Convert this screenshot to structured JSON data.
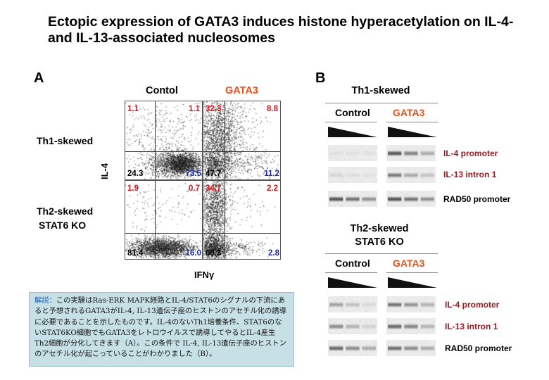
{
  "title": "Ectopic expression of GATA3 induces histone hyperacetylation on IL-4- and IL-13-associated nucleosomes",
  "panel_a": {
    "letter": "A",
    "col_control": "Contol",
    "col_gata3": "GATA3",
    "row_th1": "Th1-skewed",
    "row_th2_line1": "Th2-skewed",
    "row_th2_line2": "STAT6 KO",
    "y_axis": "IL-4",
    "x_axis": "IFNγ",
    "plots": {
      "th1_control": {
        "ul": "1.1",
        "ur": "1.1",
        "ll": "24.3",
        "lr": "73.5"
      },
      "th1_gata3": {
        "ul": "32.3",
        "ur": "8.8",
        "ll": "47.7",
        "lr": "11.2"
      },
      "th2_control": {
        "ul": "1.9",
        "ur": "0.7",
        "ll": "81.4",
        "lr": "16.0"
      },
      "th2_gata3": {
        "ul": "34.7",
        "ur": "2.2",
        "ll": "60.3",
        "lr": "2.8"
      }
    }
  },
  "note": {
    "head": "解説：",
    "body": "この実験はRas-ERK MAPK経路とIL-4/STAT6のシグナルの下流にあると予想されるGATA3がIL-4, IL-13遺伝子座のヒストンのアセチル化の誘導に必要であることを示したものです。IL-4のないTh1培養条件、STAT6のないSTAT6KO細胞でもGATA3をレトロウイルスで誘導してやるとIL-4産生Th2細胞が分化してきます（A）。この条件で IL-4, IL-13遺伝子座のヒストンのアセチル化が起こっていることがわかりました（B）。"
  },
  "panel_b": {
    "letter": "B",
    "top_title": "Th1-skewed",
    "bottom_title_line1": "Th2-skewed",
    "bottom_title_line2": "STAT6 KO",
    "col_control": "Control",
    "col_gata3": "GATA3",
    "rows": [
      "IL-4 promoter",
      "IL-13 intron 1",
      "RAD50 promoter"
    ],
    "colors": {
      "red_label": "#9b1b22",
      "gata3": "#e8501e"
    }
  }
}
